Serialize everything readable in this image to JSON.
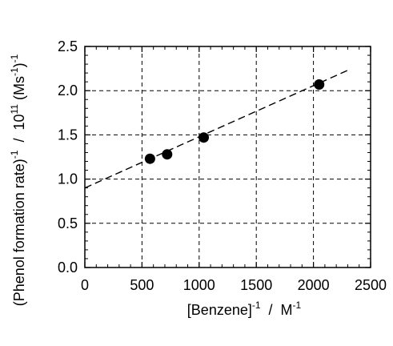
{
  "chart_data": {
    "type": "scatter",
    "x": [
      570,
      720,
      1040,
      2050
    ],
    "y": [
      1.23,
      1.28,
      1.47,
      2.07
    ],
    "fit_line": {
      "x": [
        0,
        2300
      ],
      "y": [
        0.9,
        2.23
      ],
      "style": "dashed"
    },
    "xlim": [
      0,
      2500
    ],
    "ylim": [
      0.0,
      2.5
    ],
    "xticks": [
      "0",
      "500",
      "1000",
      "1500",
      "2000",
      "2500"
    ],
    "yticks": [
      "0.0",
      "0.5",
      "1.0",
      "1.5",
      "2.0",
      "2.5"
    ],
    "xlabel": {
      "main": "[Benzene]",
      "exp1": "-1",
      "sep": "  /  M",
      "exp2": "-1"
    },
    "ylabel": {
      "main": "(Phenol formation rate)",
      "exp1": "-1",
      "sep": "  /  10",
      "exp2": "11",
      "unit": " (Ms",
      "exp3": "-1",
      "close": ")",
      "exp4": "-1"
    },
    "grid": true,
    "marker_color": "#000000"
  }
}
